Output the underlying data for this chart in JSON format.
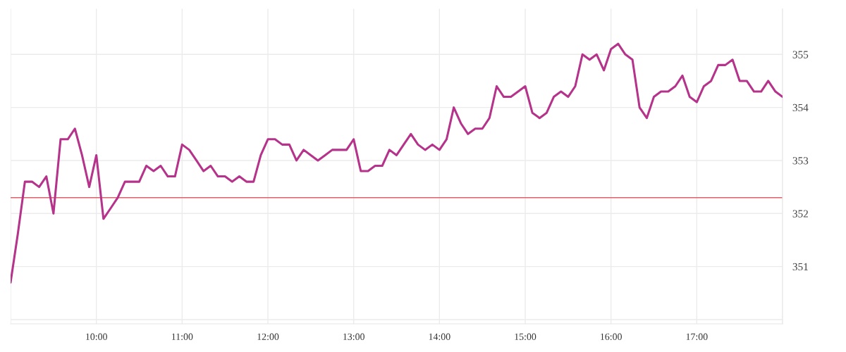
{
  "chart_data": {
    "type": "line",
    "x": [
      9,
      9.083,
      9.167,
      9.25,
      9.333,
      9.417,
      9.5,
      9.583,
      9.667,
      9.75,
      9.833,
      9.917,
      10,
      10.083,
      10.167,
      10.25,
      10.333,
      10.417,
      10.5,
      10.583,
      10.667,
      10.75,
      10.833,
      10.917,
      11,
      11.083,
      11.167,
      11.25,
      11.333,
      11.417,
      11.5,
      11.583,
      11.667,
      11.75,
      11.833,
      11.917,
      12,
      12.083,
      12.167,
      12.25,
      12.333,
      12.417,
      12.5,
      12.583,
      12.667,
      12.75,
      12.833,
      12.917,
      13,
      13.083,
      13.167,
      13.25,
      13.333,
      13.417,
      13.5,
      13.583,
      13.667,
      13.75,
      13.833,
      13.917,
      14,
      14.083,
      14.167,
      14.25,
      14.333,
      14.417,
      14.5,
      14.583,
      14.667,
      14.75,
      14.833,
      14.917,
      15,
      15.083,
      15.167,
      15.25,
      15.333,
      15.417,
      15.5,
      15.583,
      15.667,
      15.75,
      15.833,
      15.917,
      16,
      16.083,
      16.167,
      16.25,
      16.333,
      16.417,
      16.5,
      16.583,
      16.667,
      16.75,
      16.833,
      16.917,
      17,
      17.083,
      17.167,
      17.25,
      17.333,
      17.417,
      17.5,
      17.583,
      17.667,
      17.75,
      17.833,
      17.917,
      18
    ],
    "series": [
      {
        "color": "#b5338a",
        "values": [
          350.7,
          351.6,
          352.6,
          352.6,
          352.5,
          352.7,
          352.0,
          353.4,
          353.4,
          353.6,
          353.1,
          352.5,
          353.1,
          351.9,
          352.1,
          352.3,
          352.6,
          352.6,
          352.6,
          352.9,
          352.8,
          352.9,
          352.7,
          352.7,
          353.3,
          353.2,
          353.0,
          352.8,
          352.9,
          352.7,
          352.7,
          352.6,
          352.7,
          352.6,
          352.6,
          353.1,
          353.4,
          353.4,
          353.3,
          353.3,
          353.0,
          353.2,
          353.1,
          353.0,
          353.1,
          353.2,
          353.2,
          353.2,
          353.4,
          352.8,
          352.8,
          352.9,
          352.9,
          353.2,
          353.1,
          353.3,
          353.5,
          353.3,
          353.2,
          353.3,
          353.2,
          353.4,
          354.0,
          353.7,
          353.5,
          353.6,
          353.6,
          353.8,
          354.4,
          354.2,
          354.2,
          354.3,
          354.4,
          353.9,
          353.8,
          353.9,
          354.2,
          354.3,
          354.2,
          354.4,
          355.0,
          354.9,
          355.0,
          354.7,
          355.1,
          355.2,
          355.0,
          354.9,
          354.0,
          353.8,
          354.2,
          354.3,
          354.3,
          354.4,
          354.6,
          354.2,
          354.1,
          354.4,
          354.5,
          354.8,
          354.8,
          354.9,
          354.5,
          354.5,
          354.3,
          354.3,
          354.5,
          354.3,
          354.2
        ]
      }
    ],
    "xlim": [
      9,
      18
    ],
    "xticks": [
      {
        "value": 9,
        "label": null
      },
      {
        "value": 10,
        "label": "10:00"
      },
      {
        "value": 11,
        "label": "11:00"
      },
      {
        "value": 12,
        "label": "12:00"
      },
      {
        "value": 13,
        "label": "13:00"
      },
      {
        "value": 14,
        "label": "14:00"
      },
      {
        "value": 15,
        "label": "15:00"
      },
      {
        "value": 16,
        "label": "16:00"
      },
      {
        "value": 17,
        "label": "17:00"
      },
      {
        "value": 18,
        "label": null
      }
    ],
    "ylim": [
      349.92,
      355.86
    ],
    "yticks": [
      {
        "value": 350,
        "label": null
      },
      351,
      352,
      353,
      354,
      355
    ],
    "ref_lines": [
      {
        "axis": "y",
        "value": 352.3,
        "color": "#e0606a",
        "line_style": "solid"
      }
    ],
    "grid": true,
    "marker": "none",
    "line_style": "solid",
    "legend": false
  }
}
